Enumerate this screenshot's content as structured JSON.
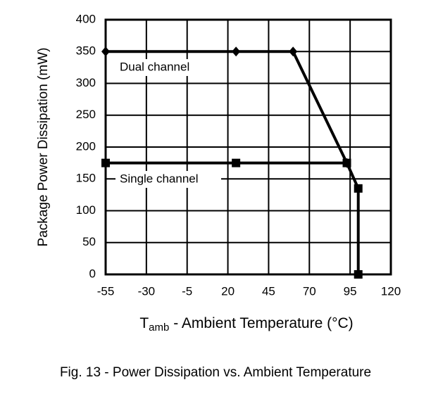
{
  "chart_data": {
    "type": "line",
    "title": "Fig. 13 - Power Dissipation vs. Ambient Temperature",
    "x_label": {
      "symbol": "T",
      "subscript": "amb",
      "text": " - Ambient Temperature (°C)"
    },
    "y_label": "Package Power Dissipation (mW)",
    "xlim": [
      -55,
      120
    ],
    "xticks": [
      -55,
      -30,
      -5,
      20,
      45,
      70,
      95,
      120
    ],
    "ylim": [
      0,
      400
    ],
    "yticks": [
      0,
      50,
      100,
      150,
      200,
      250,
      300,
      350,
      400
    ],
    "grid": true,
    "series": [
      {
        "name": "Dual channel",
        "color": "#000000",
        "marker": "diamond",
        "x": [
          -55,
          25,
          60,
          93
        ],
        "values": [
          350,
          350,
          350,
          175
        ]
      },
      {
        "name": "Single channel",
        "color": "#000000",
        "marker": "square",
        "x": [
          -55,
          25,
          93,
          100,
          100
        ],
        "values": [
          175,
          175,
          175,
          135,
          0
        ]
      }
    ]
  }
}
